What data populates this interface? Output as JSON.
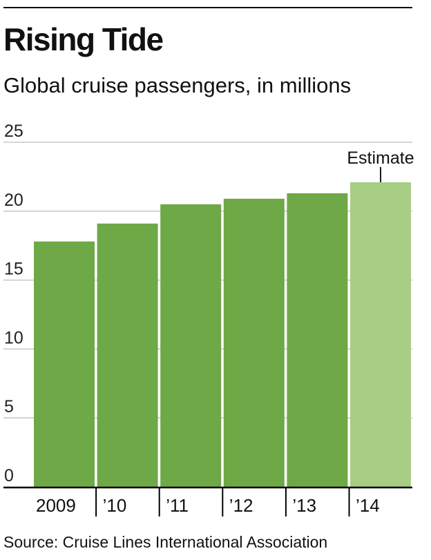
{
  "header": {
    "title": "Rising Tide",
    "subtitle": "Global cruise passengers, in millions"
  },
  "footer": {
    "source": "Source: Cruise Lines International Association"
  },
  "colors": {
    "bar": "#6fa846",
    "estimate_bar": "#a8cd84",
    "gridline": "#bfbfbf",
    "axis": "#000000"
  },
  "chart_data": {
    "type": "bar",
    "categories": [
      "2009",
      "’10",
      "’11",
      "’12",
      "’13",
      "’14"
    ],
    "values": [
      17.8,
      19.1,
      20.5,
      20.9,
      21.3,
      22.1
    ],
    "estimate_flags": [
      false,
      false,
      false,
      false,
      false,
      true
    ],
    "annotation": "Estimate",
    "ylim": [
      0,
      25
    ],
    "yticks": [
      0,
      5,
      10,
      15,
      20,
      25
    ],
    "grid": true
  }
}
